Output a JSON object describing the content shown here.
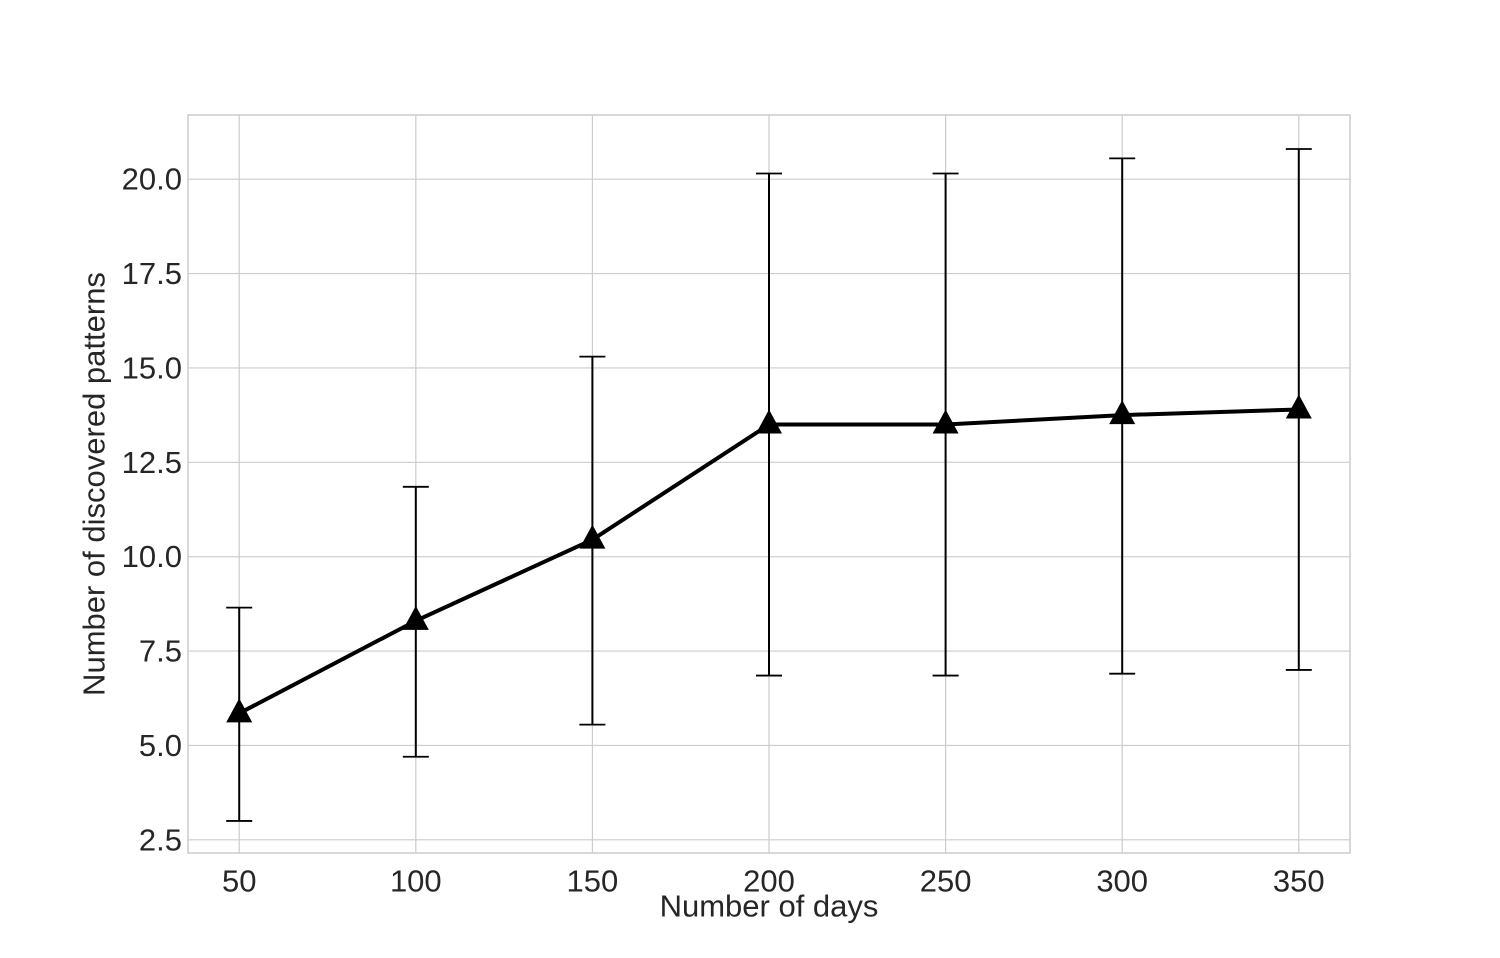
{
  "chart_data": {
    "type": "line",
    "title": "",
    "xlabel": "Number of days",
    "ylabel": "Number of discovered patterns",
    "x": [
      50,
      100,
      150,
      200,
      250,
      300,
      350
    ],
    "series": [
      {
        "values": [
          5.85,
          8.3,
          10.45,
          13.5,
          13.5,
          13.75,
          13.9
        ],
        "err_low": [
          3.0,
          4.7,
          5.55,
          6.85,
          6.85,
          6.9,
          7.0
        ],
        "err_high": [
          8.65,
          11.85,
          15.3,
          20.15,
          20.15,
          20.55,
          20.8
        ],
        "marker": "triangle-up",
        "color": "#000000"
      }
    ],
    "xticks": [
      "50",
      "100",
      "150",
      "200",
      "250",
      "300",
      "350"
    ],
    "xtick_values": [
      50,
      100,
      150,
      200,
      250,
      300,
      350
    ],
    "yticks": [
      "2.5",
      "5.0",
      "7.5",
      "10.0",
      "12.5",
      "15.0",
      "17.5",
      "20.0"
    ],
    "ytick_values": [
      2.5,
      5.0,
      7.5,
      10.0,
      12.5,
      15.0,
      17.5,
      20.0
    ],
    "xlim": [
      35.5,
      364.5
    ],
    "ylim": [
      2.15,
      21.7
    ],
    "grid": true,
    "legend": "none",
    "colors": {
      "grid": "#cccccc",
      "frame": "#cccccc",
      "text": "#262626",
      "line": "#000000"
    }
  }
}
